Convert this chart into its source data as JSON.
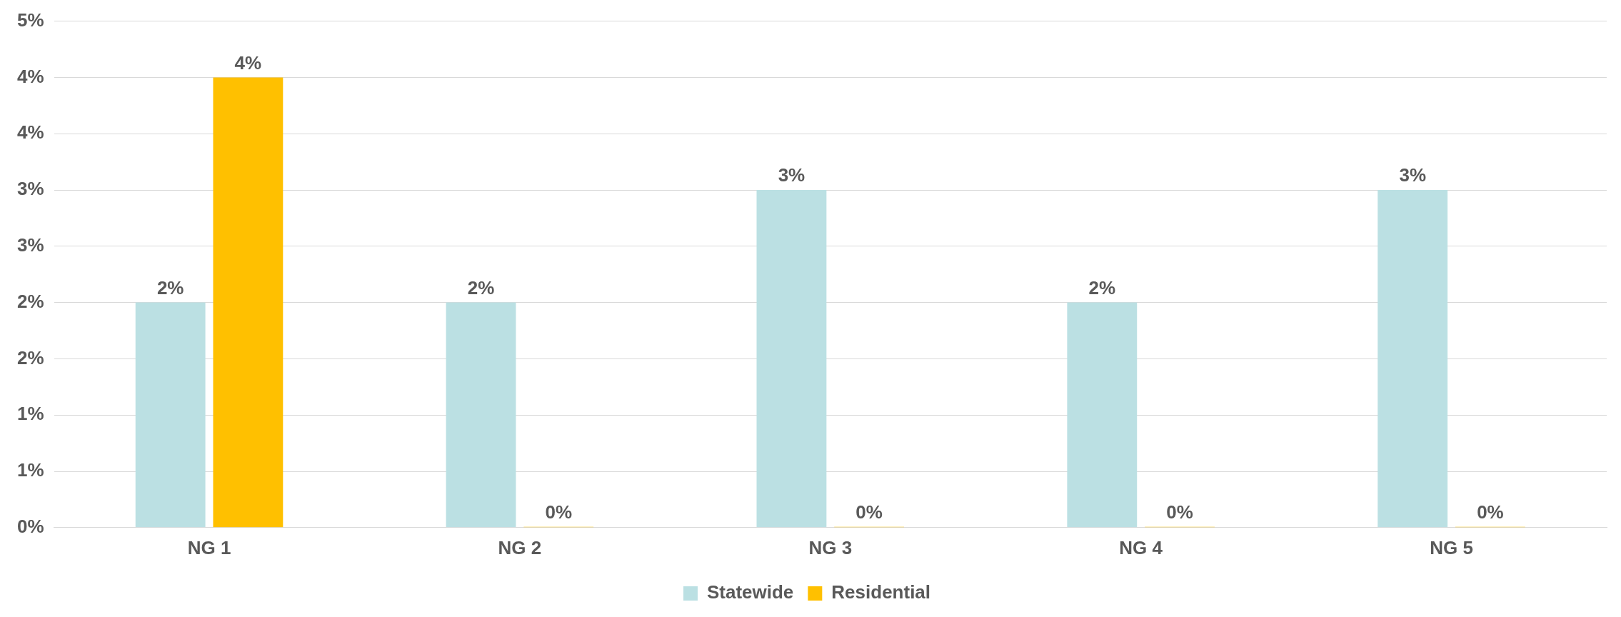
{
  "chart_data": {
    "type": "bar",
    "categories": [
      "NG 1",
      "NG 2",
      "NG 3",
      "NG 4",
      "NG 5"
    ],
    "series": [
      {
        "name": "Statewide",
        "color": "#bbe0e3",
        "values": [
          2,
          2,
          3,
          2,
          3
        ],
        "value_labels": [
          "2%",
          "2%",
          "3%",
          "2%",
          "3%"
        ]
      },
      {
        "name": "Residential",
        "color": "#ffc000",
        "values": [
          4,
          0,
          0,
          0,
          0
        ],
        "value_labels": [
          "4%",
          "0%",
          "0%",
          "0%",
          "0%"
        ]
      }
    ],
    "ylim": [
      0,
      4.5
    ],
    "yticks": [
      {
        "value": 0,
        "label": "0%"
      },
      {
        "value": 0.5,
        "label": "1%"
      },
      {
        "value": 1,
        "label": "1%"
      },
      {
        "value": 1.5,
        "label": "2%"
      },
      {
        "value": 2,
        "label": "2%"
      },
      {
        "value": 2.5,
        "label": "3%"
      },
      {
        "value": 3,
        "label": "3%"
      },
      {
        "value": 3.5,
        "label": "4%"
      },
      {
        "value": 4,
        "label": "4%"
      },
      {
        "value": 4.5,
        "label": "5%"
      }
    ],
    "grid": "y",
    "legend": "bottom"
  }
}
